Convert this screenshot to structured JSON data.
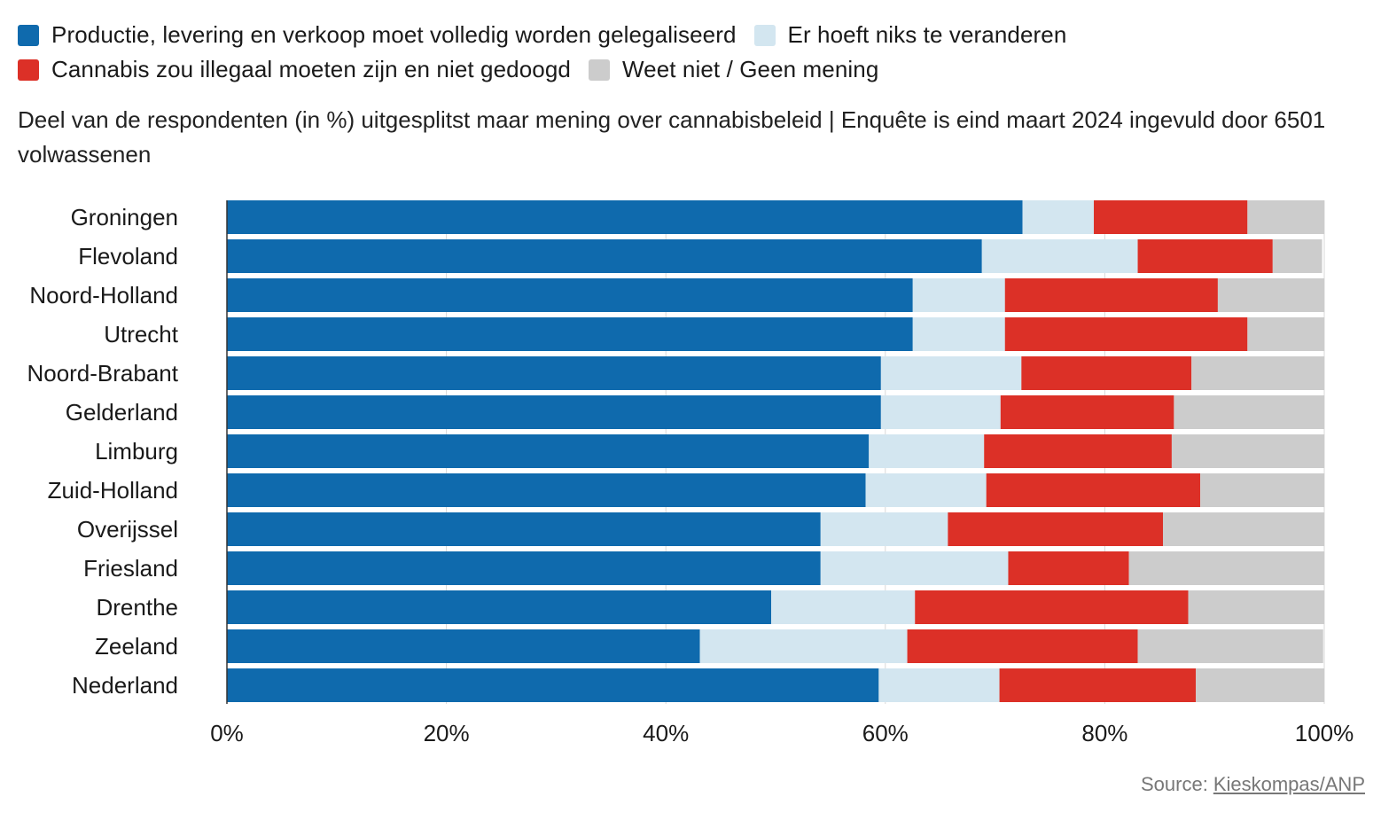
{
  "legend": [
    {
      "label": "Productie, levering en verkoop moet volledig worden gelegaliseerd",
      "color": "#0f6aad"
    },
    {
      "label": "Er hoeft niks te veranderen",
      "color": "#d3e6f0"
    },
    {
      "label": "Cannabis zou illegaal moeten zijn en niet gedoogd",
      "color": "#dc3027"
    },
    {
      "label": "Weet niet / Geen mening",
      "color": "#cccccc"
    }
  ],
  "subtitle": "Deel van de respondenten (in %) uitgesplitst maar mening over cannabisbeleid | Enquête is eind maart 2024 ingevuld door 6501 volwassenen",
  "source": {
    "prefix": "Source:",
    "link_text": "Kieskompas/ANP"
  },
  "chart_data": {
    "type": "bar",
    "orientation": "horizontal",
    "stacked": true,
    "categories": [
      "Groningen",
      "Flevoland",
      "Noord-Holland",
      "Utrecht",
      "Noord-Brabant",
      "Gelderland",
      "Limburg",
      "Zuid-Holland",
      "Overijssel",
      "Friesland",
      "Drenthe",
      "Zeeland",
      "Nederland"
    ],
    "series": [
      {
        "name": "Productie, levering en verkoop moet volledig worden gelegaliseerd",
        "color": "#0f6aad",
        "values": [
          72.5,
          68.8,
          62.5,
          62.5,
          59.6,
          59.6,
          58.5,
          58.2,
          54.1,
          54.1,
          49.6,
          43.1,
          59.4
        ]
      },
      {
        "name": "Er hoeft niks te veranderen",
        "color": "#d3e6f0",
        "values": [
          6.5,
          14.2,
          8.4,
          8.4,
          12.8,
          10.9,
          10.5,
          11.0,
          11.6,
          17.1,
          13.1,
          18.9,
          11.0
        ]
      },
      {
        "name": "Cannabis zou illegaal moeten zijn en niet gedoogd",
        "color": "#dc3027",
        "values": [
          14.0,
          12.3,
          19.4,
          22.1,
          15.5,
          15.8,
          17.1,
          19.5,
          19.6,
          11.0,
          24.9,
          21.0,
          17.9
        ]
      },
      {
        "name": "Weet niet / Geen mening",
        "color": "#cccccc",
        "values": [
          7.0,
          4.5,
          9.7,
          7.0,
          12.1,
          13.7,
          13.9,
          11.3,
          14.7,
          17.8,
          12.4,
          16.9,
          11.7
        ]
      }
    ],
    "x_ticks": [
      "0%",
      "20%",
      "40%",
      "60%",
      "80%",
      "100%"
    ],
    "xlim": [
      0,
      100
    ],
    "grid": true,
    "legend_position": "top-left"
  }
}
